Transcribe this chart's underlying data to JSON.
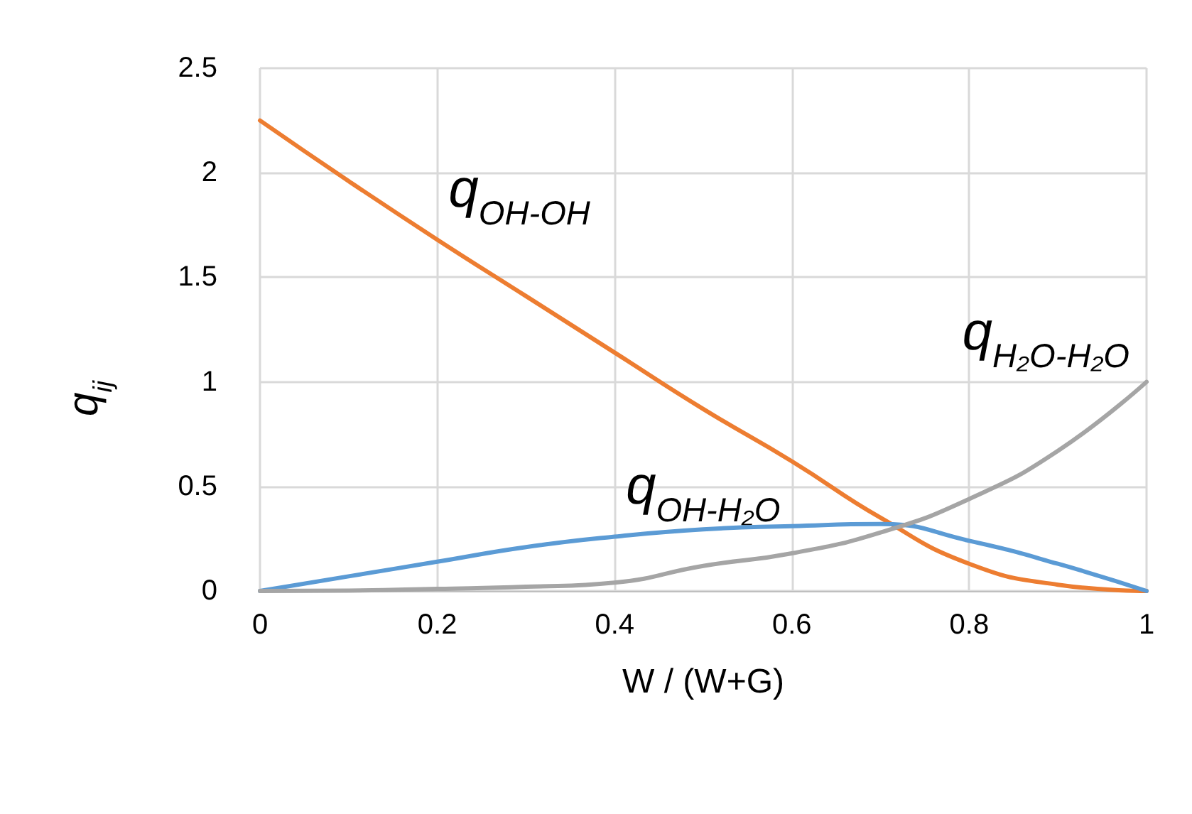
{
  "chart_data": {
    "type": "line",
    "xlabel": "W / (W+G)",
    "ylabel": "q$_{ij}$",
    "x": [
      0,
      0.1,
      0.2,
      0.3,
      0.4,
      0.5,
      0.6,
      0.7,
      0.8,
      0.9,
      1
    ],
    "series": [
      {
        "color": "#ed7d31",
        "values": [
          2.25,
          1.96,
          1.68,
          1.41,
          1.14,
          0.87,
          0.62,
          0.35,
          0.13,
          0.03,
          0
        ]
      },
      {
        "color": "#5b9bd5",
        "values": [
          0,
          0.07,
          0.14,
          0.21,
          0.26,
          0.295,
          0.31,
          0.32,
          0.24,
          0.13,
          0
        ]
      },
      {
        "color": "#a5a5a5",
        "values": [
          0,
          0.002,
          0.01,
          0.02,
          0.04,
          0.12,
          0.18,
          0.28,
          0.44,
          0.67,
          1
        ]
      }
    ],
    "annotations": [
      {
        "text": "q$_{OH-OH}$",
        "x": 0.2,
        "y": 1.68
      },
      {
        "text": "q$_{OH-H₂O}$",
        "x": 0.4,
        "y": 0.26
      },
      {
        "text": "q$_{H₂O-H₂O}$",
        "x": 1,
        "y": 1
      }
    ],
    "xlim": [
      0,
      1
    ],
    "xticks": [
      0,
      0.2,
      0.4,
      0.6,
      0.8,
      1
    ],
    "ylim": [
      0,
      2.5
    ],
    "yticks": [
      0,
      0.5,
      1,
      1.5,
      2,
      2.5
    ],
    "grid": true,
    "marker": "none",
    "line_style": "solid"
  }
}
